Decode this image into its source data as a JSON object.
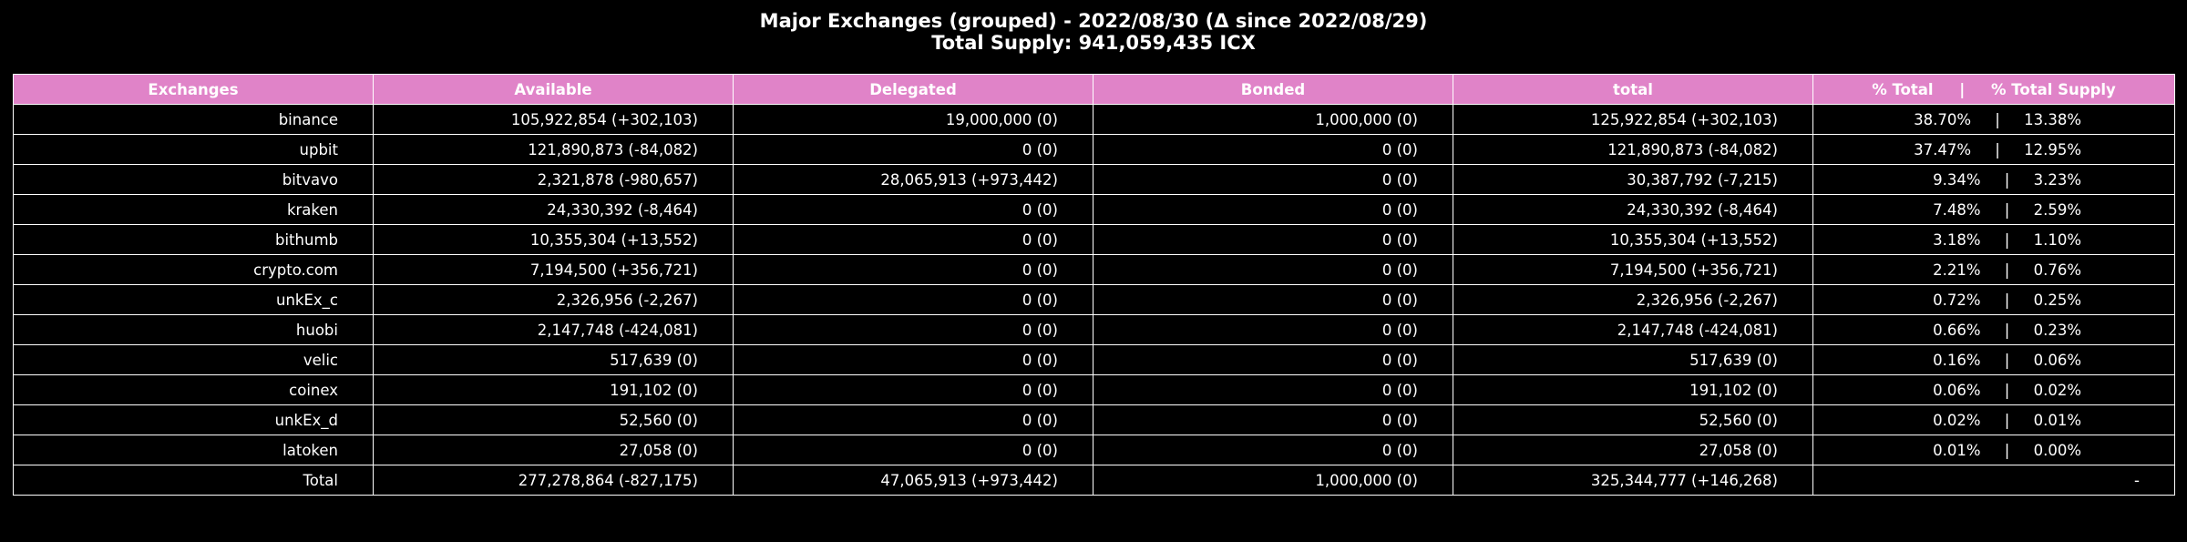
{
  "title_line1": "Major Exchanges (grouped) - 2022/08/30 (Δ since 2022/08/29)",
  "title_line2": "Total Supply: 941,059,435 ICX",
  "colors": {
    "header_bg": "#e083c8",
    "background": "#000000",
    "text": "#ffffff",
    "grid": "#ffffff"
  },
  "chart_data": {
    "type": "table",
    "columns": [
      "Exchanges",
      "Available",
      "Delegated",
      "Bonded",
      "total",
      "% Total     |     % Total Supply"
    ],
    "rows": [
      {
        "name": "binance",
        "available": "105,922,854 (+302,103)",
        "delegated": "19,000,000 (0)",
        "bonded": "1,000,000 (0)",
        "total": "125,922,854 (+302,103)",
        "pct_total": "38.70%",
        "pct_supply": "13.38%"
      },
      {
        "name": "upbit",
        "available": "121,890,873 (-84,082)",
        "delegated": "0 (0)",
        "bonded": "0 (0)",
        "total": "121,890,873 (-84,082)",
        "pct_total": "37.47%",
        "pct_supply": "12.95%"
      },
      {
        "name": "bitvavo",
        "available": "2,321,878 (-980,657)",
        "delegated": "28,065,913 (+973,442)",
        "bonded": "0 (0)",
        "total": "30,387,792 (-7,215)",
        "pct_total": "9.34%",
        "pct_supply": "3.23%"
      },
      {
        "name": "kraken",
        "available": "24,330,392 (-8,464)",
        "delegated": "0 (0)",
        "bonded": "0 (0)",
        "total": "24,330,392 (-8,464)",
        "pct_total": "7.48%",
        "pct_supply": "2.59%"
      },
      {
        "name": "bithumb",
        "available": "10,355,304 (+13,552)",
        "delegated": "0 (0)",
        "bonded": "0 (0)",
        "total": "10,355,304 (+13,552)",
        "pct_total": "3.18%",
        "pct_supply": "1.10%"
      },
      {
        "name": "crypto.com",
        "available": "7,194,500 (+356,721)",
        "delegated": "0 (0)",
        "bonded": "0 (0)",
        "total": "7,194,500 (+356,721)",
        "pct_total": "2.21%",
        "pct_supply": "0.76%"
      },
      {
        "name": "unkEx_c",
        "available": "2,326,956 (-2,267)",
        "delegated": "0 (0)",
        "bonded": "0 (0)",
        "total": "2,326,956 (-2,267)",
        "pct_total": "0.72%",
        "pct_supply": "0.25%"
      },
      {
        "name": "huobi",
        "available": "2,147,748 (-424,081)",
        "delegated": "0 (0)",
        "bonded": "0 (0)",
        "total": "2,147,748 (-424,081)",
        "pct_total": "0.66%",
        "pct_supply": "0.23%"
      },
      {
        "name": "velic",
        "available": "517,639 (0)",
        "delegated": "0 (0)",
        "bonded": "0 (0)",
        "total": "517,639 (0)",
        "pct_total": "0.16%",
        "pct_supply": "0.06%"
      },
      {
        "name": "coinex",
        "available": "191,102 (0)",
        "delegated": "0 (0)",
        "bonded": "0 (0)",
        "total": "191,102 (0)",
        "pct_total": "0.06%",
        "pct_supply": "0.02%"
      },
      {
        "name": "unkEx_d",
        "available": "52,560 (0)",
        "delegated": "0 (0)",
        "bonded": "0 (0)",
        "total": "52,560 (0)",
        "pct_total": "0.02%",
        "pct_supply": "0.01%"
      },
      {
        "name": "latoken",
        "available": "27,058 (0)",
        "delegated": "0 (0)",
        "bonded": "0 (0)",
        "total": "27,058 (0)",
        "pct_total": "0.01%",
        "pct_supply": "0.00%"
      }
    ],
    "total_row": {
      "name": "Total",
      "available": "277,278,864 (-827,175)",
      "delegated": "47,065,913 (+973,442)",
      "bonded": "1,000,000 (0)",
      "total": "325,344,777 (+146,268)",
      "pct": "-"
    },
    "pct_separator": "|"
  }
}
